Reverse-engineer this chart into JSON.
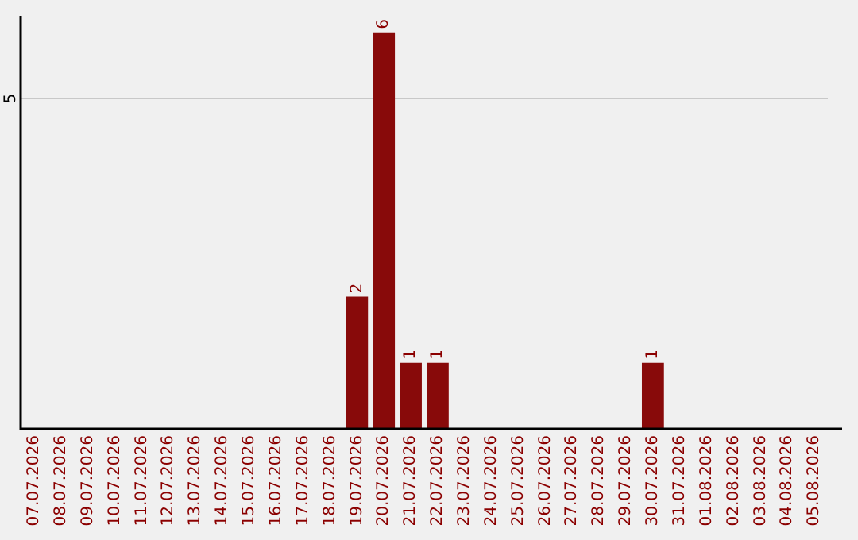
{
  "chart_data": {
    "type": "bar",
    "categories": [
      "07.07.2026",
      "08.07.2026",
      "09.07.2026",
      "10.07.2026",
      "11.07.2026",
      "12.07.2026",
      "13.07.2026",
      "14.07.2026",
      "15.07.2026",
      "16.07.2026",
      "17.07.2026",
      "18.07.2026",
      "19.07.2026",
      "20.07.2026",
      "21.07.2026",
      "22.07.2026",
      "23.07.2026",
      "24.07.2026",
      "25.07.2026",
      "26.07.2026",
      "27.07.2026",
      "28.07.2026",
      "29.07.2026",
      "30.07.2026",
      "31.07.2026",
      "01.08.2026",
      "02.08.2026",
      "03.08.2026",
      "04.08.2026",
      "05.08.2026"
    ],
    "values": [
      null,
      null,
      null,
      null,
      null,
      null,
      null,
      null,
      null,
      null,
      null,
      null,
      2,
      6,
      1,
      1,
      null,
      null,
      null,
      null,
      null,
      null,
      null,
      1,
      null,
      null,
      null,
      null,
      null,
      null
    ],
    "value_labels": [
      null,
      null,
      null,
      null,
      null,
      null,
      null,
      null,
      null,
      null,
      null,
      null,
      "2",
      "6",
      "1",
      "1",
      null,
      null,
      null,
      null,
      null,
      null,
      null,
      "1",
      null,
      null,
      null,
      null,
      null,
      null
    ],
    "color": "#880a0a",
    "ylim": [
      0,
      6.25
    ],
    "ref_lines": [
      {
        "axis": "y",
        "value": 5,
        "label": "5",
        "color": "#c8c8c8"
      }
    ],
    "legend": false
  }
}
